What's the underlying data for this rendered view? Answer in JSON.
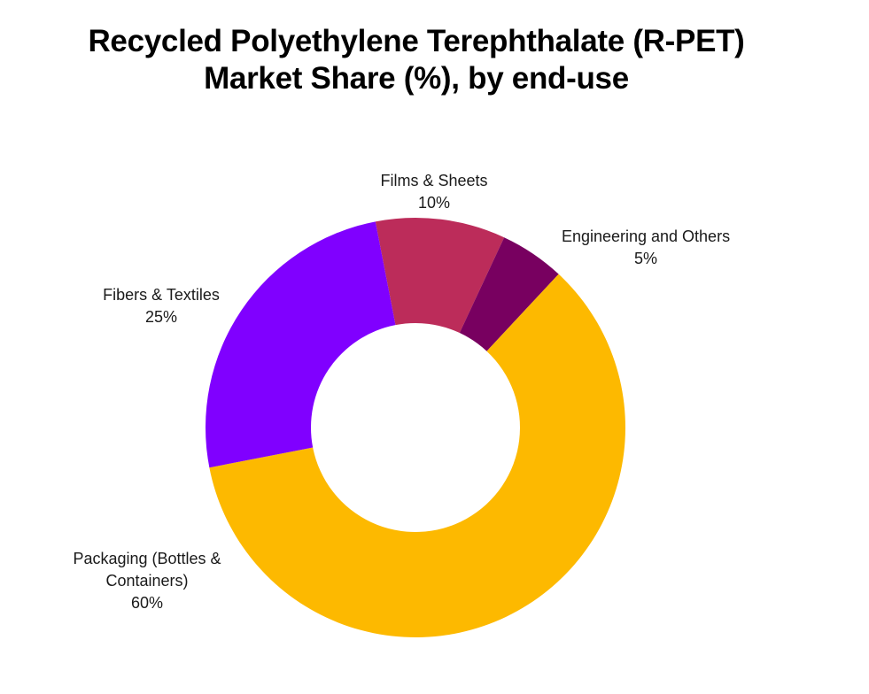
{
  "title": {
    "line1": "Recycled Polyethylene Terephthalate (R-PET)",
    "line2": "Market Share (%), by end-use"
  },
  "labels": [
    {
      "name": "Films & Sheets",
      "value": "10%"
    },
    {
      "name": "Engineering and Others",
      "value": "5%"
    },
    {
      "name": "Fibers & Textiles",
      "value": "25%"
    },
    {
      "name_line1": "Packaging (Bottles &",
      "name_line2": "Containers)",
      "value": "60%"
    }
  ],
  "chart_data": {
    "type": "pie",
    "subtype": "donut",
    "title": "Recycled Polyethylene Terephthalate (R-PET) Market Share (%), by end-use",
    "categories": [
      "Films & Sheets",
      "Engineering and Others",
      "Packaging (Bottles & Containers)",
      "Fibers & Textiles"
    ],
    "values": [
      10,
      5,
      60,
      25
    ],
    "colors": [
      "#BC2C5A",
      "#780060",
      "#FDB900",
      "#8000FF"
    ],
    "unit": "%",
    "start_angle_deg": -11,
    "direction": "clockwise",
    "legend": "none (direct labels)"
  }
}
